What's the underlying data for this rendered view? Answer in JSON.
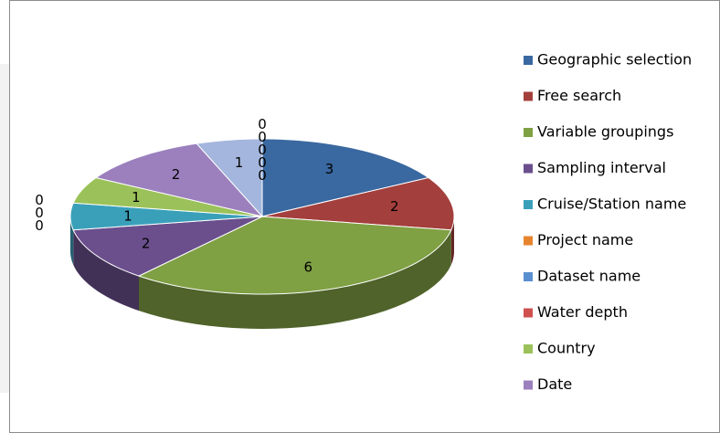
{
  "chart_data": {
    "type": "pie3d",
    "categories": [
      "Geographic selection",
      "Free search",
      "Variable groupings",
      "Sampling interval",
      "Cruise/Station name",
      "Project name",
      "Dataset name",
      "Water depth",
      "Country",
      "Date",
      null,
      null,
      null,
      null,
      null,
      null
    ],
    "values": [
      3,
      2,
      6,
      2,
      1,
      0,
      0,
      0,
      1,
      2,
      1,
      0,
      0,
      0,
      0,
      0
    ],
    "colors": [
      "#3a68a0",
      "#a33f3c",
      "#7fa043",
      "#6a4f8c",
      "#3aa0ba",
      "#e6842e",
      "#5a8fcf",
      "#d05050",
      "#9bc25a",
      "#9b80bd",
      "#a4b6dd",
      "#b9c6e0",
      "#c4a6a6",
      "#b7cf94",
      "#a99bc0",
      "#8fc8d8"
    ],
    "legend": "right"
  }
}
